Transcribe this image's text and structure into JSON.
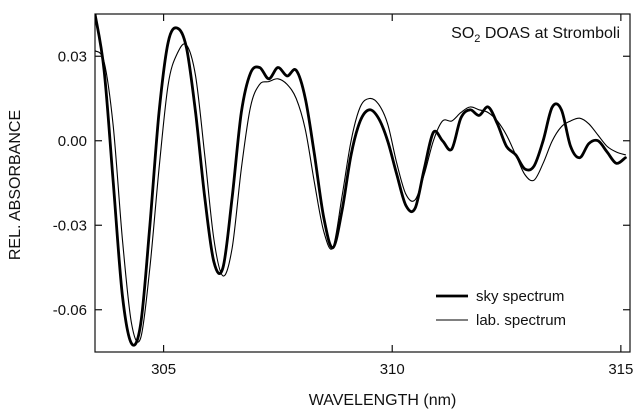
{
  "chart_data": {
    "type": "line",
    "title_main": "SO",
    "title_sub": "2",
    "title_rest": " DOAS at Stromboli",
    "xlabel": "WAVELENGTH (nm)",
    "ylabel": "REL. ABSORBANCE",
    "xlim": [
      303.5,
      315.2
    ],
    "ylim": [
      -0.075,
      0.045
    ],
    "xticks": [
      305,
      310,
      315
    ],
    "xtick_labels": [
      "305",
      "310",
      "315"
    ],
    "yticks": [
      0.03,
      0.0,
      -0.03,
      -0.06
    ],
    "ytick_labels": [
      "0.03",
      "0.00",
      "-0.03",
      "-0.06"
    ],
    "grid": false,
    "legend_position": "bottom-right",
    "series": [
      {
        "name": "sky spectrum",
        "style": "thick",
        "color": "#000000",
        "x": [
          303.5,
          303.7,
          303.9,
          304.1,
          304.3,
          304.5,
          304.7,
          304.9,
          305.1,
          305.3,
          305.5,
          305.7,
          305.9,
          306.1,
          306.3,
          306.5,
          306.7,
          306.9,
          307.1,
          307.3,
          307.5,
          307.7,
          307.9,
          308.1,
          308.3,
          308.5,
          308.7,
          308.9,
          309.1,
          309.3,
          309.5,
          309.7,
          309.9,
          310.1,
          310.3,
          310.5,
          310.7,
          310.9,
          311.1,
          311.3,
          311.5,
          311.7,
          311.9,
          312.1,
          312.3,
          312.5,
          312.7,
          312.9,
          313.1,
          313.3,
          313.5,
          313.7,
          313.9,
          314.1,
          314.3,
          314.5,
          314.7,
          314.9,
          315.1
        ],
        "y": [
          0.045,
          0.025,
          -0.015,
          -0.055,
          -0.072,
          -0.065,
          -0.03,
          0.01,
          0.035,
          0.04,
          0.033,
          0.01,
          -0.02,
          -0.043,
          -0.045,
          -0.02,
          0.01,
          0.024,
          0.026,
          0.022,
          0.026,
          0.023,
          0.025,
          0.015,
          -0.005,
          -0.027,
          -0.038,
          -0.025,
          -0.005,
          0.007,
          0.011,
          0.008,
          0.0,
          -0.012,
          -0.023,
          -0.024,
          -0.01,
          0.003,
          0.0,
          -0.003,
          0.008,
          0.011,
          0.009,
          0.012,
          0.006,
          -0.002,
          -0.005,
          -0.01,
          -0.009,
          0.0,
          0.012,
          0.011,
          -0.002,
          -0.006,
          -0.001,
          0.0,
          -0.004,
          -0.008,
          -0.006
        ]
      },
      {
        "name": "lab. spectrum",
        "style": "thin",
        "color": "#000000",
        "x": [
          303.5,
          303.7,
          303.9,
          304.1,
          304.3,
          304.5,
          304.7,
          304.9,
          305.1,
          305.3,
          305.5,
          305.7,
          305.9,
          306.1,
          306.3,
          306.5,
          306.7,
          306.9,
          307.1,
          307.3,
          307.5,
          307.7,
          307.9,
          308.1,
          308.3,
          308.5,
          308.7,
          308.9,
          309.1,
          309.3,
          309.5,
          309.7,
          309.9,
          310.1,
          310.3,
          310.5,
          310.7,
          310.9,
          311.1,
          311.3,
          311.5,
          311.7,
          311.9,
          312.1,
          312.3,
          312.5,
          312.7,
          312.9,
          313.1,
          313.3,
          313.5,
          313.7,
          313.9,
          314.1,
          314.3,
          314.5,
          314.7,
          314.9,
          315.1
        ],
        "y": [
          0.032,
          0.028,
          0.005,
          -0.035,
          -0.065,
          -0.07,
          -0.045,
          -0.01,
          0.02,
          0.031,
          0.034,
          0.023,
          -0.005,
          -0.035,
          -0.048,
          -0.038,
          -0.01,
          0.012,
          0.02,
          0.021,
          0.022,
          0.02,
          0.015,
          0.004,
          -0.015,
          -0.032,
          -0.038,
          -0.02,
          0.0,
          0.012,
          0.015,
          0.013,
          0.006,
          -0.008,
          -0.019,
          -0.021,
          -0.012,
          0.0,
          0.007,
          0.007,
          0.01,
          0.012,
          0.011,
          0.01,
          0.007,
          0.002,
          -0.005,
          -0.012,
          -0.014,
          -0.008,
          0.0,
          0.005,
          0.007,
          0.008,
          0.006,
          0.002,
          -0.002,
          -0.004,
          -0.005
        ]
      }
    ]
  }
}
